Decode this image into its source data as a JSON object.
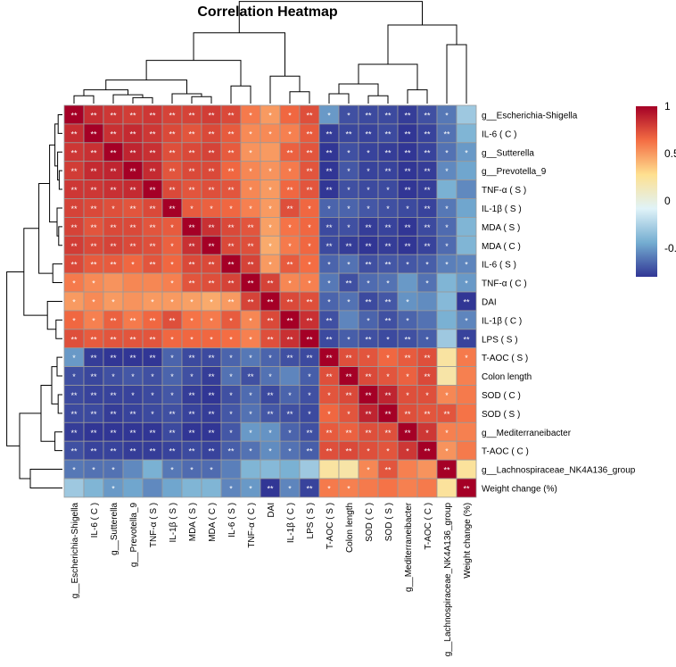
{
  "chart_data": {
    "type": "heatmap",
    "title": "Correlation Heatmap",
    "rows": [
      "g__Escherichia-Shigella",
      "IL-6 ( C )",
      "g__Sutterella",
      "g__Prevotella_9",
      "TNF-α ( S )",
      "IL-1β ( S )",
      "MDA  ( S )",
      "MDA  ( C )",
      "IL-6 ( S )",
      "TNF-α ( C )",
      "DAI",
      "IL-1β ( C )",
      "LPS ( S )",
      "T-AOC ( S )",
      "Colon length",
      "SOD ( C )",
      "SOD ( S )",
      "g__Mediterraneibacter",
      "T-AOC ( C )",
      "g__Lachnospiraceae_NK4A136_group",
      "Weight change (%)"
    ],
    "columns": [
      "g__Escherichia-Shigella",
      "IL-6 ( C )",
      "g__Sutterella",
      "g__Prevotella_9",
      "TNF-α ( S )",
      "IL-1β ( S )",
      "MDA  ( S )",
      "MDA  ( C )",
      "IL-6 ( S )",
      "TNF-α ( C )",
      "DAI",
      "IL-1β ( C )",
      "LPS ( S )",
      "T-AOC ( S )",
      "Colon length",
      "SOD ( C )",
      "SOD ( S )",
      "g__Mediterraneibacter",
      "T-AOC ( C )",
      "g__Lachnospiraceae_NK4A136_group",
      "Weight change (%)"
    ],
    "values": [
      [
        1.0,
        0.85,
        0.82,
        0.8,
        0.82,
        0.78,
        0.78,
        0.8,
        0.76,
        0.6,
        0.5,
        0.66,
        0.74,
        -0.5,
        -0.72,
        -0.74,
        -0.74,
        -0.78,
        -0.72,
        -0.6,
        -0.3
      ],
      [
        0.85,
        1.0,
        0.84,
        0.86,
        0.82,
        0.76,
        0.72,
        0.76,
        0.7,
        0.55,
        0.55,
        0.58,
        0.7,
        -0.78,
        -0.75,
        -0.76,
        -0.74,
        -0.8,
        -0.76,
        -0.62,
        -0.4
      ],
      [
        0.82,
        0.84,
        1.0,
        0.88,
        0.84,
        0.74,
        0.76,
        0.78,
        0.7,
        0.52,
        0.5,
        0.68,
        0.72,
        -0.8,
        -0.72,
        -0.76,
        -0.78,
        -0.8,
        -0.76,
        -0.62,
        -0.5
      ],
      [
        0.8,
        0.86,
        0.88,
        1.0,
        0.86,
        0.72,
        0.76,
        0.76,
        0.66,
        0.56,
        0.52,
        0.6,
        0.72,
        -0.82,
        -0.7,
        -0.76,
        -0.76,
        -0.82,
        -0.78,
        -0.55,
        -0.46
      ],
      [
        0.82,
        0.82,
        0.84,
        0.86,
        1.0,
        0.76,
        0.72,
        0.74,
        0.72,
        0.56,
        0.5,
        0.66,
        0.72,
        -0.82,
        -0.72,
        -0.74,
        -0.74,
        -0.8,
        -0.78,
        -0.42,
        -0.55
      ],
      [
        0.78,
        0.76,
        0.74,
        0.72,
        0.76,
        1.0,
        0.7,
        0.68,
        0.66,
        0.58,
        0.5,
        0.74,
        0.66,
        -0.66,
        -0.66,
        -0.7,
        -0.72,
        -0.74,
        -0.76,
        -0.6,
        -0.46
      ],
      [
        0.78,
        0.72,
        0.76,
        0.76,
        0.72,
        0.7,
        1.0,
        0.84,
        0.76,
        0.72,
        0.48,
        0.62,
        0.66,
        -0.74,
        -0.72,
        -0.78,
        -0.76,
        -0.8,
        -0.74,
        -0.64,
        -0.4
      ],
      [
        0.8,
        0.76,
        0.78,
        0.76,
        0.74,
        0.68,
        0.84,
        1.0,
        0.76,
        0.74,
        0.45,
        0.6,
        0.66,
        -0.74,
        -0.78,
        -0.8,
        -0.78,
        -0.8,
        -0.76,
        -0.64,
        -0.4
      ],
      [
        0.76,
        0.7,
        0.7,
        0.66,
        0.72,
        0.66,
        0.76,
        0.76,
        1.0,
        0.78,
        0.5,
        0.7,
        0.64,
        -0.66,
        -0.62,
        -0.72,
        -0.7,
        -0.7,
        -0.68,
        -0.58,
        -0.56
      ],
      [
        0.6,
        0.55,
        0.52,
        0.56,
        0.56,
        0.58,
        0.72,
        0.74,
        0.78,
        1.0,
        0.78,
        0.56,
        0.58,
        -0.6,
        -0.72,
        -0.64,
        -0.62,
        -0.5,
        -0.62,
        -0.4,
        -0.5
      ],
      [
        0.5,
        0.55,
        0.5,
        0.52,
        0.5,
        0.5,
        0.48,
        0.45,
        0.5,
        0.78,
        1.0,
        0.76,
        0.74,
        -0.66,
        -0.62,
        -0.74,
        -0.7,
        -0.52,
        -0.54,
        -0.38,
        -0.82
      ],
      [
        0.66,
        0.58,
        0.68,
        0.6,
        0.66,
        0.74,
        0.62,
        0.6,
        0.7,
        0.56,
        0.76,
        1.0,
        0.84,
        -0.72,
        -0.56,
        -0.66,
        -0.72,
        -0.66,
        -0.62,
        -0.42,
        -0.56
      ],
      [
        0.74,
        0.7,
        0.72,
        0.72,
        0.72,
        0.66,
        0.66,
        0.66,
        0.64,
        0.58,
        0.74,
        0.84,
        1.0,
        -0.74,
        -0.68,
        -0.72,
        -0.74,
        -0.72,
        -0.68,
        -0.3,
        -0.76
      ],
      [
        -0.5,
        -0.78,
        -0.8,
        -0.82,
        -0.82,
        -0.66,
        -0.74,
        -0.74,
        -0.66,
        -0.6,
        -0.66,
        -0.72,
        -0.74,
        1.0,
        0.74,
        0.72,
        0.66,
        0.7,
        0.74,
        0.22,
        0.6
      ],
      [
        -0.72,
        -0.75,
        -0.72,
        -0.7,
        -0.72,
        -0.66,
        -0.72,
        -0.78,
        -0.62,
        -0.72,
        -0.62,
        -0.56,
        -0.68,
        0.74,
        1.0,
        0.76,
        0.72,
        0.68,
        0.76,
        0.2,
        0.58
      ],
      [
        -0.74,
        -0.76,
        -0.76,
        -0.76,
        -0.74,
        -0.7,
        -0.78,
        -0.8,
        -0.72,
        -0.64,
        -0.74,
        -0.66,
        -0.72,
        0.72,
        0.76,
        1.0,
        0.88,
        0.74,
        0.74,
        0.56,
        0.6
      ],
      [
        -0.74,
        -0.74,
        -0.78,
        -0.76,
        -0.74,
        -0.72,
        -0.76,
        -0.78,
        -0.7,
        -0.62,
        -0.7,
        -0.72,
        -0.74,
        0.66,
        0.72,
        0.88,
        1.0,
        0.74,
        0.72,
        0.72,
        0.62
      ],
      [
        -0.78,
        -0.8,
        -0.8,
        -0.82,
        -0.8,
        -0.74,
        -0.8,
        -0.8,
        -0.7,
        -0.5,
        -0.52,
        -0.66,
        -0.72,
        0.7,
        0.68,
        0.74,
        0.74,
        1.0,
        0.82,
        0.58,
        0.58
      ],
      [
        -0.72,
        -0.76,
        -0.76,
        -0.78,
        -0.78,
        -0.76,
        -0.74,
        -0.76,
        -0.68,
        -0.62,
        -0.54,
        -0.62,
        -0.68,
        0.74,
        0.76,
        0.74,
        0.72,
        0.82,
        1.0,
        0.52,
        0.6
      ],
      [
        -0.6,
        -0.62,
        -0.62,
        -0.55,
        -0.42,
        -0.6,
        -0.64,
        -0.64,
        -0.58,
        -0.4,
        -0.38,
        -0.42,
        -0.3,
        0.22,
        0.2,
        0.56,
        0.72,
        0.58,
        0.52,
        1.0,
        0.24
      ],
      [
        -0.3,
        -0.4,
        -0.5,
        -0.46,
        -0.55,
        -0.46,
        -0.4,
        -0.4,
        -0.56,
        -0.5,
        -0.82,
        -0.56,
        -0.76,
        0.6,
        0.58,
        0.6,
        0.62,
        0.58,
        0.6,
        0.24,
        1.0
      ]
    ],
    "significance": [
      [
        "**",
        "**",
        "**",
        "**",
        "**",
        "**",
        "**",
        "**",
        "**",
        "*",
        "*",
        "*",
        "**",
        "*",
        "*",
        "**",
        "**",
        "**",
        "**",
        "*",
        ""
      ],
      [
        "**",
        "**",
        "**",
        "**",
        "**",
        "**",
        "**",
        "**",
        "**",
        "*",
        "*",
        "*",
        "**",
        "**",
        "**",
        "**",
        "**",
        "**",
        "**",
        "**",
        ""
      ],
      [
        "**",
        "**",
        "**",
        "**",
        "**",
        "**",
        "**",
        "**",
        "**",
        "*",
        "",
        "**",
        "**",
        "**",
        "*",
        "*",
        "**",
        "**",
        "**",
        "*",
        "*"
      ],
      [
        "**",
        "**",
        "**",
        "**",
        "**",
        "**",
        "**",
        "**",
        "**",
        "*",
        "*",
        "*",
        "**",
        "**",
        "*",
        "*",
        "**",
        "**",
        "**",
        "*",
        ""
      ],
      [
        "**",
        "**",
        "**",
        "**",
        "**",
        "**",
        "**",
        "**",
        "**",
        "*",
        "*",
        "**",
        "**",
        "**",
        "*",
        "*",
        "*",
        "**",
        "**",
        "",
        ""
      ],
      [
        "**",
        "**",
        "*",
        "**",
        "**",
        "**",
        "*",
        "*",
        "*",
        "*",
        "*",
        "**",
        "*",
        "*",
        "*",
        "*",
        "*",
        "*",
        "**",
        "*",
        ""
      ],
      [
        "**",
        "**",
        "**",
        "**",
        "**",
        "*",
        "**",
        "**",
        "**",
        "**",
        "*",
        "*",
        "*",
        "**",
        "*",
        "**",
        "**",
        "**",
        "**",
        "*",
        ""
      ],
      [
        "**",
        "**",
        "**",
        "**",
        "**",
        "*",
        "**",
        "**",
        "**",
        "**",
        "*",
        "*",
        "*",
        "**",
        "**",
        "**",
        "**",
        "**",
        "**",
        "*",
        ""
      ],
      [
        "**",
        "**",
        "**",
        "*",
        "**",
        "*",
        "**",
        "**",
        "**",
        "**",
        "*",
        "**",
        "*",
        "*",
        "*",
        "**",
        "**",
        "*",
        "*",
        "*",
        "*"
      ],
      [
        "*",
        "*",
        "",
        "",
        "",
        "*",
        "**",
        "**",
        "**",
        "**",
        "**",
        "*",
        "*",
        "*",
        "**",
        "*",
        "*",
        "",
        "*",
        "",
        "*"
      ],
      [
        "*",
        "*",
        "*",
        "",
        "*",
        "*",
        "*",
        "*",
        "**",
        "**",
        "**",
        "**",
        "**",
        "*",
        "*",
        "**",
        "**",
        "*",
        "",
        "",
        "**"
      ],
      [
        "*",
        "*",
        "**",
        "**",
        "**",
        "**",
        "*",
        "*",
        "*",
        "*",
        "**",
        "**",
        "**",
        "**",
        "",
        "*",
        "**",
        "*",
        "",
        "",
        "*"
      ],
      [
        "**",
        "**",
        "**",
        "**",
        "**",
        "*",
        "*",
        "*",
        "*",
        "*",
        "**",
        "**",
        "**",
        "**",
        "*",
        "**",
        "*",
        "**",
        "*",
        "",
        "**"
      ],
      [
        "*",
        "**",
        "**",
        "**",
        "**",
        "*",
        "**",
        "**",
        "*",
        "*",
        "*",
        "**",
        "**",
        "**",
        "**",
        "*",
        "*",
        "**",
        "**",
        "",
        "*"
      ],
      [
        "*",
        "**",
        "*",
        "*",
        "*",
        "*",
        "*",
        "**",
        "*",
        "**",
        "*",
        "",
        "*",
        "**",
        "**",
        "**",
        "*",
        "*",
        "**",
        "",
        ""
      ],
      [
        "**",
        "**",
        "**",
        "*",
        "*",
        "*",
        "**",
        "**",
        "*",
        "*",
        "**",
        "*",
        "*",
        "*",
        "**",
        "**",
        "**",
        "*",
        "*",
        "*",
        ""
      ],
      [
        "**",
        "**",
        "**",
        "**",
        "*",
        "**",
        "**",
        "**",
        "*",
        "*",
        "**",
        "**",
        "*",
        "*",
        "*",
        "**",
        "**",
        "**",
        "**",
        "**",
        ""
      ],
      [
        "**",
        "**",
        "**",
        "**",
        "**",
        "**",
        "**",
        "**",
        "*",
        "*",
        "*",
        "*",
        "**",
        "**",
        "**",
        "**",
        "**",
        "**",
        "*",
        "*",
        ""
      ],
      [
        "**",
        "**",
        "**",
        "**",
        "**",
        "**",
        "**",
        "**",
        "**",
        "*",
        "*",
        "*",
        "**",
        "**",
        "**",
        "*",
        "*",
        "*",
        "**",
        "*",
        ""
      ],
      [
        "*",
        "*",
        "*",
        "",
        "",
        "*",
        "*",
        "*",
        "",
        "",
        "",
        "",
        "",
        "",
        "",
        "*",
        "**",
        "",
        "",
        "**",
        ""
      ],
      [
        "",
        "",
        "*",
        "",
        "",
        "",
        "",
        "",
        "*",
        "*",
        "**",
        "*",
        "**",
        "*",
        "*",
        "",
        "",
        "",
        "",
        "",
        "**"
      ]
    ],
    "colorbar": {
      "range": [
        -0.8,
        1.0
      ],
      "ticks": [
        1,
        0.5,
        0,
        -0.5
      ],
      "colors": [
        "#313695",
        "#74add1",
        "#e0f3f8",
        "#fee090",
        "#f46d43",
        "#a50026"
      ]
    }
  }
}
